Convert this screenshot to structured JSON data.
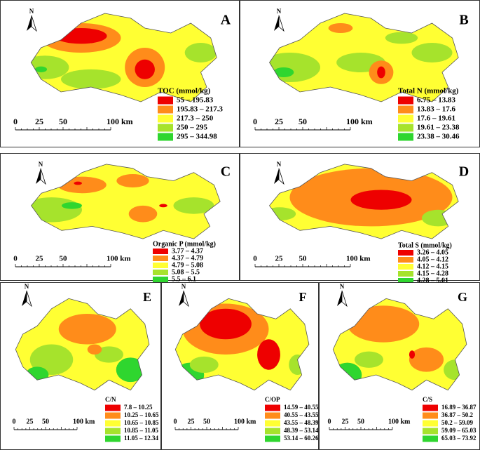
{
  "north_label": "N",
  "scale_labels": [
    "0",
    "25",
    "50",
    "100 km"
  ],
  "colors": [
    "#ee0000",
    "#ff8c1a",
    "#ffff33",
    "#a6e32c",
    "#2fd62f"
  ],
  "panels": [
    {
      "letter": "A",
      "legend_title": "TOC (mmol/kg)",
      "legend": [
        "55 – 195.83",
        "195.83 – 217.3",
        "217.3 – 250",
        "250 – 295",
        "295 – 344.98"
      ]
    },
    {
      "letter": "B",
      "legend_title": "Total N (mmol/kg)",
      "legend": [
        "6.75 – 13.83",
        "13.83 – 17.6",
        "17.6 – 19.61",
        "19.61 – 23.38",
        "23.38 – 30.46"
      ]
    },
    {
      "letter": "C",
      "legend_title": "Organic P (mmol/kg)",
      "legend": [
        "3.77 – 4.37",
        "4.37 – 4.79",
        "4.79 – 5.08",
        "5.08 – 5.5",
        "5.5 – 6.1"
      ]
    },
    {
      "letter": "D",
      "legend_title": "Total S (mmol/kg)",
      "legend": [
        "3.26 – 4.05",
        "4.05 – 4.12",
        "4.12 – 4.15",
        "4.15 – 4.28",
        "4.28 – 5.01"
      ]
    },
    {
      "letter": "E",
      "legend_title": "C/N",
      "legend": [
        "7.8 – 10.25",
        "10.25 – 10.65",
        "10.65 – 10.85",
        "10.85 – 11.05",
        "11.05 – 12.34"
      ]
    },
    {
      "letter": "F",
      "legend_title": "C/OP",
      "legend": [
        "14.59 – 40.55",
        "40.55 – 43.55",
        "43.55 – 48.39",
        "48.39 – 53.14",
        "53.14 – 60.26"
      ]
    },
    {
      "letter": "G",
      "legend_title": "C/S",
      "legend": [
        "16.89 – 36.87",
        "36.87 – 50.2",
        "50.2 – 59.09",
        "59.09 – 65.03",
        "65.03 – 73.92"
      ]
    }
  ]
}
